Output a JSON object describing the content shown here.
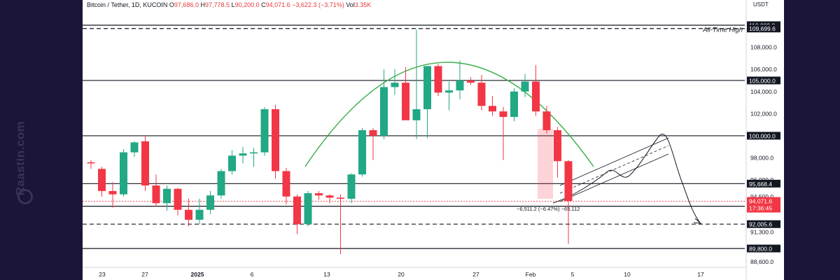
{
  "header": {
    "symbol": "Bitcoin / Tether, 1D, KUCOIN",
    "o_key": "O",
    "o_val": "97,686.0",
    "h_key": "H",
    "h_val": "97,778.5",
    "l_key": "L",
    "l_val": "90,200.0",
    "c_key": "C",
    "c_val": "94,071.6 −3,622.3 (−3.71%)",
    "vol_key": "Vol",
    "vol_val": "3.35K"
  },
  "watermark": {
    "text": "Raastin.com"
  },
  "colors": {
    "up": "#22a884",
    "down": "#f23645",
    "band": "#1b1538",
    "arc": "#3aae48",
    "label_bg": "#131722"
  },
  "chart_data": {
    "type": "candlestick",
    "unit": "USDT",
    "ylim": [
      88000,
      111200
    ],
    "x_ticks": [
      {
        "label": "23",
        "bold": false
      },
      {
        "label": "27",
        "bold": false
      },
      {
        "label": "2025",
        "bold": true
      },
      {
        "label": "6",
        "bold": false
      },
      {
        "label": "13",
        "bold": false
      },
      {
        "label": "20",
        "bold": false
      },
      {
        "label": "27",
        "bold": false
      },
      {
        "label": "Feb",
        "bold": false
      },
      {
        "label": "5",
        "bold": false
      },
      {
        "label": "10",
        "bold": false
      },
      {
        "label": "17",
        "bold": false
      }
    ],
    "y_ticks": [
      "108,000.0",
      "106,000.0",
      "104,000.0",
      "102,000.0",
      "98,000.0",
      "96,000.0",
      "94,500.0",
      "91,300.0",
      "88,600.0"
    ],
    "price_levels": [
      {
        "price": 110000,
        "label": "110,000.0",
        "style": "solid"
      },
      {
        "price": 109699.6,
        "label": "109,699.6",
        "style": "dashed",
        "note": "All-Time High"
      },
      {
        "price": 105000,
        "label": "105,000.0",
        "style": "solid"
      },
      {
        "price": 100000,
        "label": "100,000.0",
        "style": "solid"
      },
      {
        "price": 95668.4,
        "label": "95,668.4",
        "style": "solid"
      },
      {
        "price": 93625.1,
        "label": "93,625.1",
        "style": "solid"
      },
      {
        "price": 92005.6,
        "label": "92,005.6",
        "style": "dashed"
      },
      {
        "price": 89800,
        "label": "89,800.0",
        "style": "solid"
      }
    ],
    "current_price": {
      "price": 94071.6,
      "label": "94,071.6",
      "countdown": "17:36:45"
    },
    "measure": {
      "text": "−6,511.2 (−6.47%) −65,112"
    },
    "candles": [
      {
        "o": 97600,
        "h": 97800,
        "l": 97000,
        "c": 97500
      },
      {
        "o": 97000,
        "h": 97200,
        "l": 94500,
        "c": 95000
      },
      {
        "o": 95000,
        "h": 95800,
        "l": 93500,
        "c": 94700
      },
      {
        "o": 94700,
        "h": 98800,
        "l": 94500,
        "c": 98500
      },
      {
        "o": 98500,
        "h": 99500,
        "l": 98100,
        "c": 99400
      },
      {
        "o": 99500,
        "h": 100000,
        "l": 95000,
        "c": 95500
      },
      {
        "o": 95500,
        "h": 96500,
        "l": 93600,
        "c": 93900
      },
      {
        "o": 93900,
        "h": 95500,
        "l": 93200,
        "c": 95200
      },
      {
        "o": 95200,
        "h": 95300,
        "l": 92800,
        "c": 93300
      },
      {
        "o": 93300,
        "h": 94300,
        "l": 91800,
        "c": 92400
      },
      {
        "o": 92400,
        "h": 94300,
        "l": 92000,
        "c": 93300
      },
      {
        "o": 93300,
        "h": 95000,
        "l": 92900,
        "c": 94600
      },
      {
        "o": 94600,
        "h": 97000,
        "l": 94300,
        "c": 96800
      },
      {
        "o": 96800,
        "h": 98700,
        "l": 96500,
        "c": 98200
      },
      {
        "o": 98200,
        "h": 99000,
        "l": 97500,
        "c": 98400
      },
      {
        "o": 98400,
        "h": 98900,
        "l": 97200,
        "c": 98500
      },
      {
        "o": 98500,
        "h": 102600,
        "l": 98200,
        "c": 102400
      },
      {
        "o": 102400,
        "h": 102800,
        "l": 96100,
        "c": 96800
      },
      {
        "o": 96800,
        "h": 97100,
        "l": 93800,
        "c": 94500
      },
      {
        "o": 94500,
        "h": 94700,
        "l": 91100,
        "c": 92000
      },
      {
        "o": 92000,
        "h": 95000,
        "l": 91800,
        "c": 94800
      },
      {
        "o": 94800,
        "h": 95000,
        "l": 94200,
        "c": 94600
      },
      {
        "o": 94600,
        "h": 94700,
        "l": 93900,
        "c": 94400
      },
      {
        "o": 94400,
        "h": 94700,
        "l": 89300,
        "c": 94300
      },
      {
        "o": 94300,
        "h": 96600,
        "l": 93900,
        "c": 96500
      },
      {
        "o": 96500,
        "h": 100700,
        "l": 96300,
        "c": 100500
      },
      {
        "o": 100500,
        "h": 100700,
        "l": 97800,
        "c": 100000
      },
      {
        "o": 100000,
        "h": 106000,
        "l": 99700,
        "c": 104400
      },
      {
        "o": 104400,
        "h": 106000,
        "l": 103700,
        "c": 104800
      },
      {
        "o": 104800,
        "h": 106200,
        "l": 101600,
        "c": 101400
      },
      {
        "o": 101400,
        "h": 109600,
        "l": 99700,
        "c": 102400
      },
      {
        "o": 102400,
        "h": 106300,
        "l": 99800,
        "c": 106300
      },
      {
        "o": 106300,
        "h": 106500,
        "l": 103600,
        "c": 103900
      },
      {
        "o": 103900,
        "h": 104900,
        "l": 102300,
        "c": 104100
      },
      {
        "o": 104100,
        "h": 106800,
        "l": 103300,
        "c": 105000
      },
      {
        "o": 105000,
        "h": 105300,
        "l": 104600,
        "c": 104800
      },
      {
        "o": 104800,
        "h": 105500,
        "l": 102300,
        "c": 102700
      },
      {
        "o": 102700,
        "h": 103600,
        "l": 101800,
        "c": 102200
      },
      {
        "o": 102200,
        "h": 102600,
        "l": 97800,
        "c": 101700
      },
      {
        "o": 101700,
        "h": 104300,
        "l": 101300,
        "c": 104000
      },
      {
        "o": 104000,
        "h": 105600,
        "l": 103500,
        "c": 104900
      },
      {
        "o": 104900,
        "h": 106400,
        "l": 101800,
        "c": 102200
      },
      {
        "o": 102200,
        "h": 102700,
        "l": 100200,
        "c": 100500
      },
      {
        "o": 100500,
        "h": 100800,
        "l": 96200,
        "c": 97700
      },
      {
        "o": 97700,
        "h": 97800,
        "l": 90200,
        "c": 94100
      }
    ]
  }
}
